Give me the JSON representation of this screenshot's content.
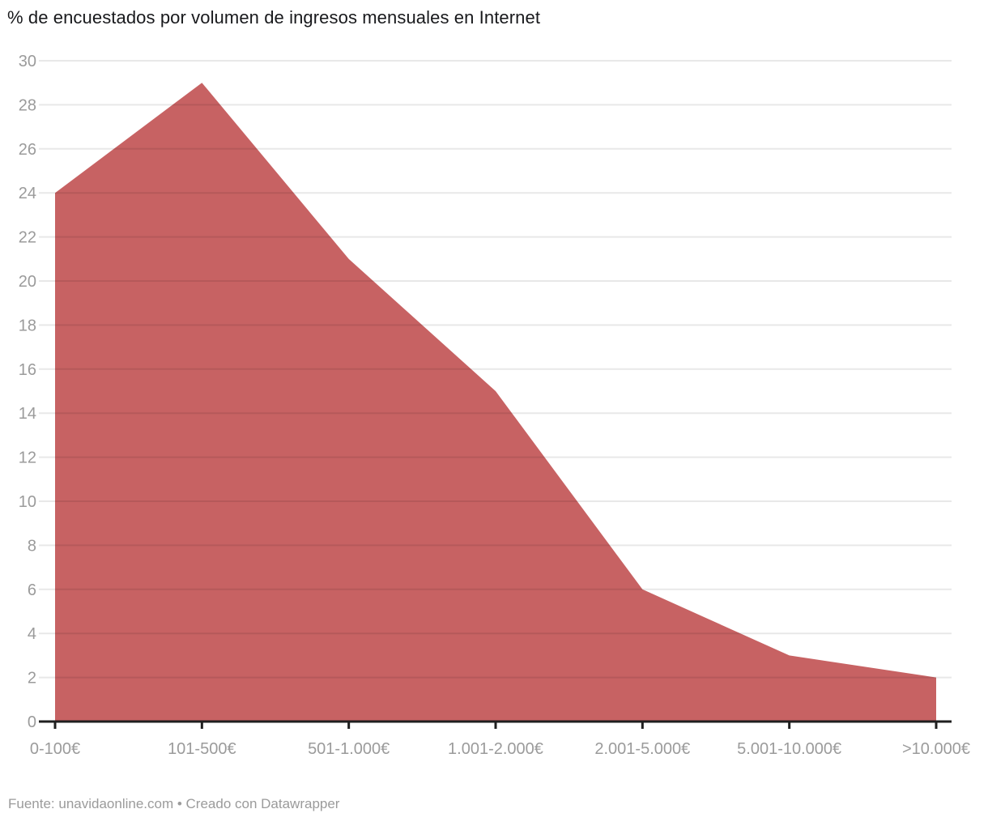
{
  "title": "% de encuestados por volumen de ingresos mensuales en Internet",
  "footer": "Fuente: unavidaonline.com • Creado con Datawrapper",
  "colors": {
    "area": "#c76263",
    "grid_overlay": "rgba(0,0,0,0.09)",
    "axis": "#1f1f1f",
    "tick_label": "#9b9b9b",
    "title": "#18191c"
  },
  "chart_data": {
    "type": "area",
    "title": "% de encuestados por volumen de ingresos mensuales en Internet",
    "categories": [
      "0-100€",
      "101-500€",
      "501-1.000€",
      "1.001-2.000€",
      "2.001-5.000€",
      "5.001-10.000€",
      ">10.000€"
    ],
    "values": [
      24,
      29,
      21,
      15,
      6,
      3,
      2
    ],
    "xlabel": "",
    "ylabel": "",
    "ylim": [
      0,
      30
    ],
    "ytick_step": 2,
    "grid": "horizontal",
    "legend": "none",
    "source": "Fuente: unavidaonline.com",
    "credit": "Creado con Datawrapper"
  }
}
